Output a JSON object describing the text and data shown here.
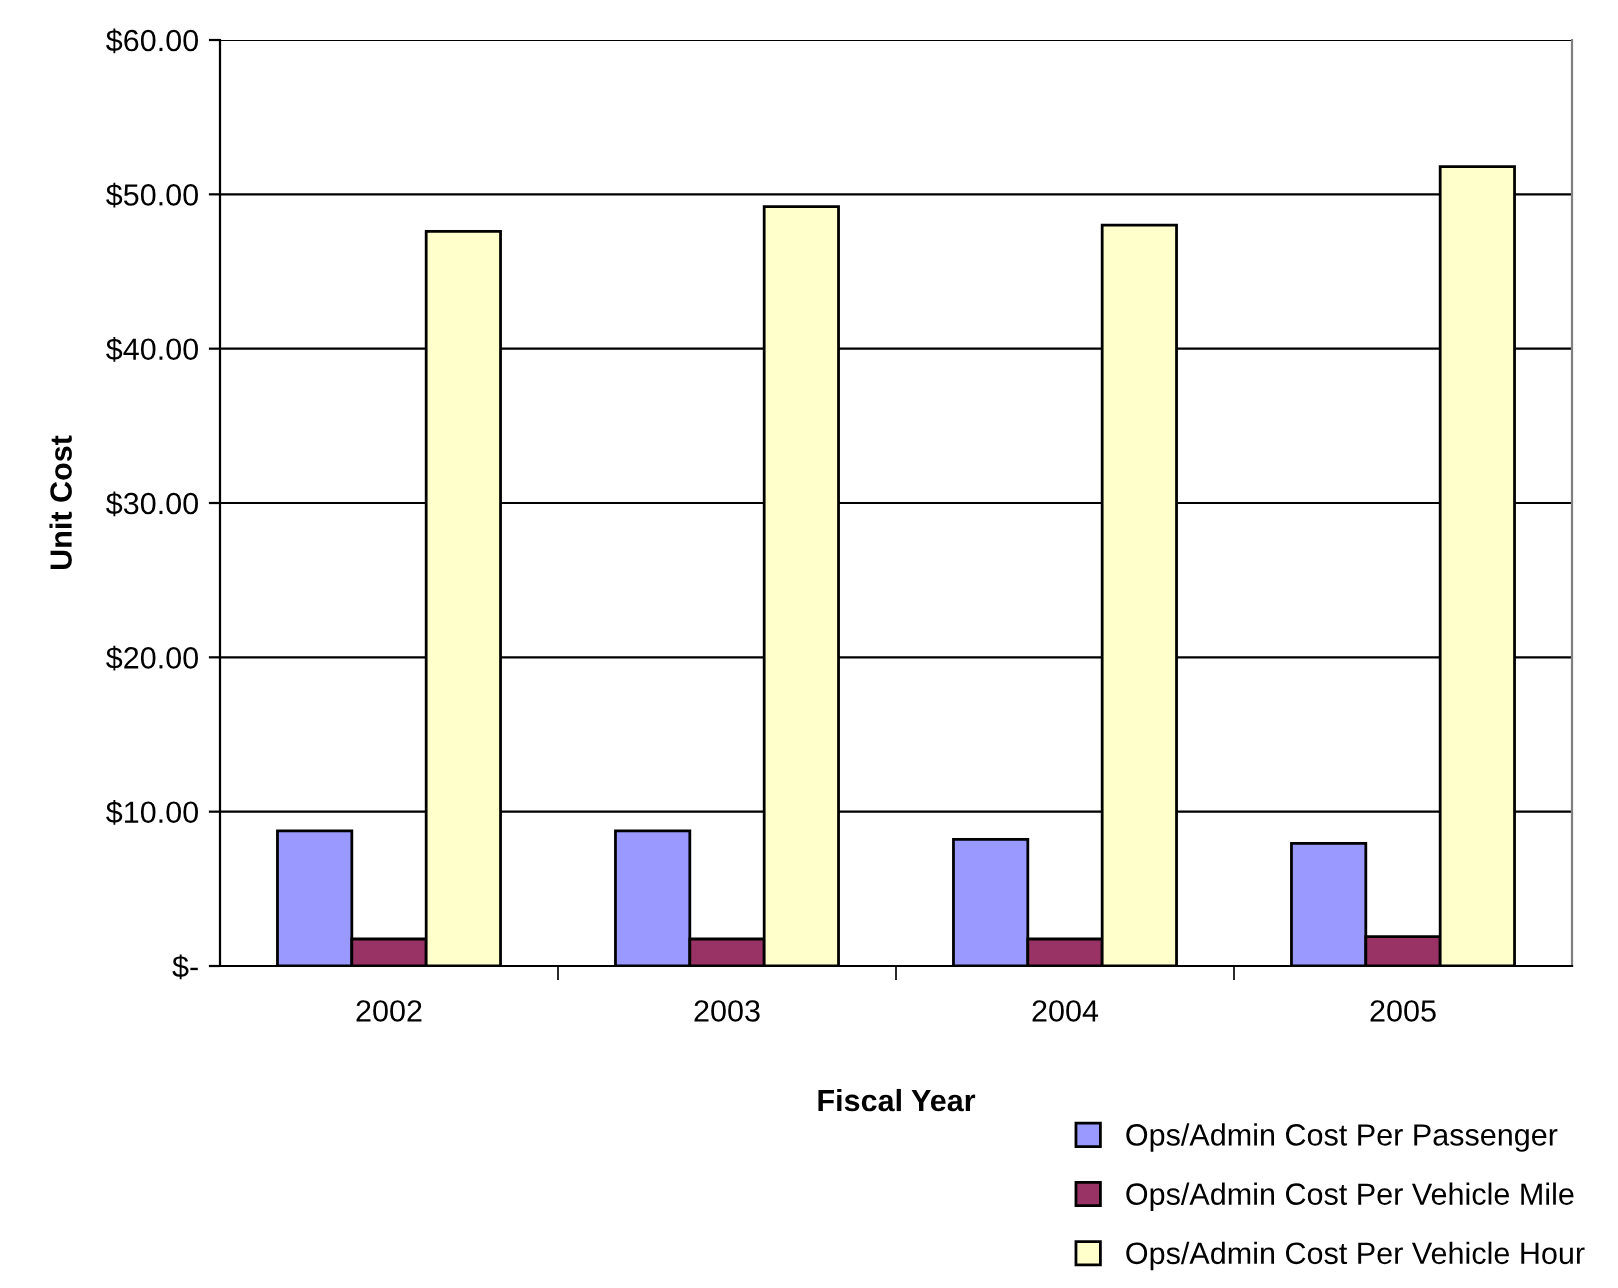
{
  "chart_data": {
    "type": "bar",
    "xlabel": "Fiscal Year",
    "ylabel": "Unit Cost",
    "categories": [
      "2002",
      "2003",
      "2004",
      "2005"
    ],
    "series": [
      {
        "name": "Ops/Admin Cost Per Passenger",
        "color": "#9999ff",
        "values": [
          8.75,
          8.75,
          8.2,
          7.95
        ]
      },
      {
        "name": "Ops/Admin Cost Per Vehicle Mile",
        "color": "#993366",
        "values": [
          1.75,
          1.75,
          1.75,
          1.9
        ]
      },
      {
        "name": "Ops/Admin Cost Per Vehicle Hour",
        "color": "#ffffcc",
        "values": [
          47.6,
          49.2,
          48.0,
          51.8
        ]
      }
    ],
    "ylim": [
      0,
      60
    ],
    "yticks": [
      {
        "value": 0,
        "label": "$-"
      },
      {
        "value": 10,
        "label": "$10.00"
      },
      {
        "value": 20,
        "label": "$20.00"
      },
      {
        "value": 30,
        "label": "$30.00"
      },
      {
        "value": 40,
        "label": "$40.00"
      },
      {
        "value": 50,
        "label": "$50.00"
      },
      {
        "value": 60,
        "label": "$60.00"
      }
    ],
    "grid": "y",
    "legend": "bottom right"
  }
}
